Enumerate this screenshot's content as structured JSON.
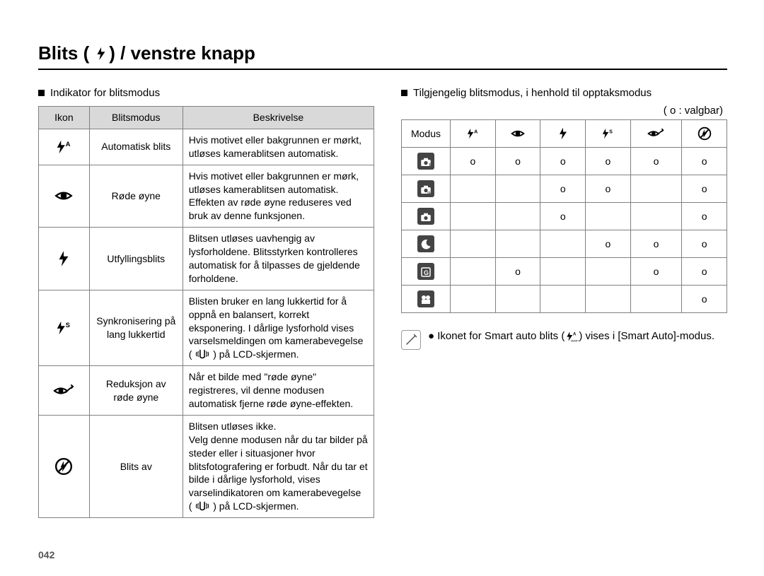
{
  "page_number": "042",
  "title": {
    "prefix": "Blits (",
    "suffix": ") / venstre knapp"
  },
  "left": {
    "heading": "Indikator for blitsmodus",
    "headers": {
      "ikon": "Ikon",
      "mode": "Blitsmodus",
      "desc": "Beskrivelse"
    },
    "rows": [
      {
        "icon": "flash-auto",
        "mode": "Automatisk blits",
        "desc": "Hvis motivet eller bakgrunnen er mørkt, utløses kamerablitsen automatisk."
      },
      {
        "icon": "redeye",
        "mode": "Røde øyne",
        "desc": "Hvis motivet eller bakgrunnen er mørk, utløses kamerablitsen automatisk. Effekten av røde øyne reduseres ved bruk av denne funksjonen."
      },
      {
        "icon": "flash-fill",
        "mode": "Utfyllingsblits",
        "desc": "Blitsen utløses uavhengig av lysforholdene. Blitsstyrken kontrolleres automatisk for å tilpasses de gjeldende forholdene."
      },
      {
        "icon": "flash-slow",
        "mode": "Synkronisering på lang lukkertid",
        "desc": "Blisten bruker en lang lukkertid for å oppnå en balansert, korrekt eksponering. I dårlige lysforhold vises varselsmeldingen om kamerabevegelse  (        ) på LCD-skjermen.",
        "has_shake": true
      },
      {
        "icon": "redeye-fix",
        "mode": "Reduksjon av røde øyne",
        "desc": "Når et bilde med \"røde øyne\" registreres, vil denne modusen automatisk fjerne røde øyne-effekten."
      },
      {
        "icon": "flash-off",
        "mode": "Blits av",
        "desc": "Blitsen utløses ikke.\nVelg denne modusen når du tar bilder på steder eller i situasjoner hvor blitsfotografering er forbudt. Når du tar et bilde i dårlige lysforhold, vises varselindikatoren om kamerabevegelse\n(        ) på LCD-skjermen.",
        "has_shake": true
      }
    ]
  },
  "right": {
    "heading": "Tilgjengelig blitsmodus, i henhold til opptaksmodus",
    "legend": "( o : valgbar)",
    "col_head_mode": "Modus",
    "col_icons": [
      "flash-auto",
      "redeye",
      "flash-fill",
      "flash-slow",
      "redeye-fix",
      "flash-off"
    ],
    "row_icons": [
      "cam-p",
      "cam-is",
      "cam-m",
      "night",
      "guide",
      "movie"
    ],
    "cells": [
      [
        "o",
        "o",
        "o",
        "o",
        "o",
        "o"
      ],
      [
        "",
        "",
        "o",
        "o",
        "",
        "o"
      ],
      [
        "",
        "",
        "o",
        "",
        "",
        "o"
      ],
      [
        "",
        "",
        "",
        "o",
        "o",
        "o"
      ],
      [
        "",
        "o",
        "",
        "",
        "o",
        "o"
      ],
      [
        "",
        "",
        "",
        "",
        "",
        "o"
      ]
    ],
    "note_bullet": "●",
    "note_parts": {
      "pre": "Ikonet for Smart auto blits (",
      "post": ") vises i [Smart Auto]-modus."
    }
  },
  "colors": {
    "header_bg": "#d9d9d9",
    "border": "#808080",
    "badge_bg": "#444444"
  }
}
